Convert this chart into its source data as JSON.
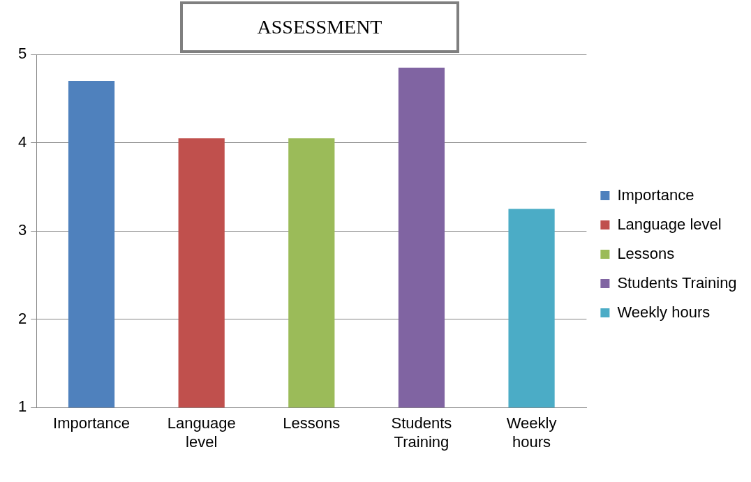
{
  "chart_data": {
    "type": "bar",
    "title": "ASSESSMENT",
    "categories": [
      "Importance",
      "Language level",
      "Lessons",
      "Students Training",
      "Weekly hours"
    ],
    "series": [
      {
        "name": "Importance",
        "color": "#4f81bd",
        "values": [
          4.7,
          null,
          null,
          null,
          null
        ]
      },
      {
        "name": "Language level",
        "color": "#c0504d",
        "values": [
          null,
          4.05,
          null,
          null,
          null
        ]
      },
      {
        "name": "Lessons",
        "color": "#9bbb59",
        "values": [
          null,
          null,
          4.05,
          null,
          null
        ]
      },
      {
        "name": "Students Training",
        "color": "#8064a2",
        "values": [
          null,
          null,
          null,
          4.85,
          null
        ]
      },
      {
        "name": "Weekly hours",
        "color": "#4bacc6",
        "values": [
          null,
          null,
          null,
          null,
          3.25
        ]
      }
    ],
    "ylim": [
      1,
      5
    ],
    "yticks": [
      1,
      2,
      3,
      4,
      5
    ],
    "grid": "y",
    "legend": "right"
  }
}
